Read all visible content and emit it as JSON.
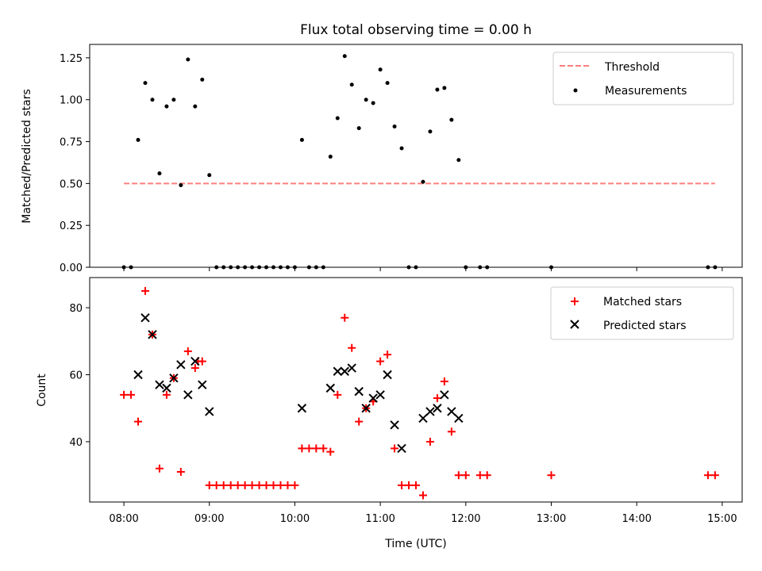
{
  "chart_data": [
    {
      "type": "scatter",
      "title": "Flux total observing time = 0.00 h",
      "ylabel": "Matched/Predicted stars",
      "xlabel": "",
      "ylim": [
        0,
        1.33
      ],
      "yticks": [
        "0.00",
        "0.25",
        "0.50",
        "0.75",
        "1.00",
        "1.25"
      ],
      "grid": false,
      "legend_position": "top-right",
      "threshold": {
        "name": "Threshold",
        "value": 0.5,
        "color": "#ff7f7f",
        "style": "dashed",
        "x_start": "08:00",
        "x_end": "14:55"
      },
      "series": [
        {
          "name": "Measurements",
          "marker": "dot",
          "color": "#000000",
          "x": [
            "08:00",
            "08:05",
            "08:10",
            "08:15",
            "08:20",
            "08:25",
            "08:30",
            "08:35",
            "08:40",
            "08:45",
            "08:50",
            "08:55",
            "09:00",
            "09:05",
            "09:10",
            "09:15",
            "09:20",
            "09:25",
            "09:30",
            "09:35",
            "09:40",
            "09:45",
            "09:50",
            "09:55",
            "10:00",
            "10:05",
            "10:10",
            "10:15",
            "10:20",
            "10:25",
            "10:30",
            "10:35",
            "10:40",
            "10:45",
            "10:50",
            "10:55",
            "11:00",
            "11:05",
            "11:10",
            "11:15",
            "11:20",
            "11:25",
            "11:30",
            "11:35",
            "11:40",
            "11:45",
            "11:50",
            "11:55",
            "12:00",
            "12:10",
            "12:15",
            "13:00",
            "14:50",
            "14:55"
          ],
          "y": [
            0.0,
            0.0,
            0.76,
            1.1,
            1.0,
            0.56,
            0.96,
            1.0,
            0.49,
            1.24,
            0.96,
            1.12,
            0.55,
            0.0,
            0.0,
            0.0,
            0.0,
            0.0,
            0.0,
            0.0,
            0.0,
            0.0,
            0.0,
            0.0,
            0.0,
            0.76,
            0.0,
            0.0,
            0.0,
            0.66,
            0.89,
            1.26,
            1.09,
            0.83,
            1.0,
            0.98,
            1.18,
            1.1,
            0.84,
            0.71,
            0.0,
            0.0,
            0.51,
            0.81,
            1.06,
            1.07,
            0.88,
            0.64,
            0.0,
            0.0,
            0.0,
            0.0,
            0.0,
            0.0
          ]
        }
      ]
    },
    {
      "type": "scatter",
      "title": "",
      "ylabel": "Count",
      "xlabel": "Time (UTC)",
      "ylim": [
        22,
        89
      ],
      "yticks": [
        "40",
        "60",
        "80"
      ],
      "xticks": [
        "08:00",
        "09:00",
        "10:00",
        "11:00",
        "12:00",
        "13:00",
        "14:00",
        "15:00"
      ],
      "xlim": [
        "07:36",
        "15:14"
      ],
      "grid": false,
      "legend_position": "top-right",
      "series": [
        {
          "name": "Matched stars",
          "marker": "plus",
          "color": "#ff0000",
          "x": [
            "08:00",
            "08:05",
            "08:10",
            "08:15",
            "08:20",
            "08:25",
            "08:30",
            "08:35",
            "08:40",
            "08:45",
            "08:50",
            "08:52",
            "08:55",
            "09:00",
            "09:05",
            "09:10",
            "09:15",
            "09:20",
            "09:25",
            "09:30",
            "09:35",
            "09:40",
            "09:45",
            "09:50",
            "09:55",
            "10:00",
            "10:05",
            "10:10",
            "10:15",
            "10:20",
            "10:25",
            "10:30",
            "10:35",
            "10:40",
            "10:45",
            "10:50",
            "10:55",
            "11:00",
            "11:05",
            "11:10",
            "11:15",
            "11:20",
            "11:25",
            "11:30",
            "11:35",
            "11:40",
            "11:45",
            "11:50",
            "11:55",
            "12:00",
            "12:10",
            "12:15",
            "13:00",
            "14:50",
            "14:55"
          ],
          "y": [
            54,
            54,
            46,
            85,
            72,
            32,
            54,
            59,
            31,
            67,
            62,
            64,
            64,
            27,
            27,
            27,
            27,
            27,
            27,
            27,
            27,
            27,
            27,
            27,
            27,
            27,
            38,
            38,
            38,
            38,
            37,
            54,
            77,
            68,
            46,
            50,
            52,
            64,
            66,
            38,
            27,
            27,
            27,
            24,
            40,
            53,
            58,
            43,
            30,
            30,
            30,
            30,
            30,
            30,
            30
          ]
        },
        {
          "name": "Predicted stars",
          "marker": "x",
          "color": "#000000",
          "x": [
            "08:10",
            "08:15",
            "08:20",
            "08:25",
            "08:30",
            "08:35",
            "08:40",
            "08:45",
            "08:50",
            "08:55",
            "09:00",
            "10:05",
            "10:25",
            "10:30",
            "10:35",
            "10:40",
            "10:45",
            "10:50",
            "10:55",
            "11:00",
            "11:05",
            "11:10",
            "11:15",
            "11:30",
            "11:35",
            "11:40",
            "11:45",
            "11:50",
            "11:55"
          ],
          "y": [
            60,
            77,
            72,
            57,
            56,
            59,
            63,
            54,
            64,
            57,
            49,
            50,
            56,
            61,
            61,
            62,
            55,
            50,
            53,
            54,
            60,
            45,
            38,
            47,
            49,
            50,
            54,
            49,
            47
          ]
        }
      ]
    }
  ]
}
